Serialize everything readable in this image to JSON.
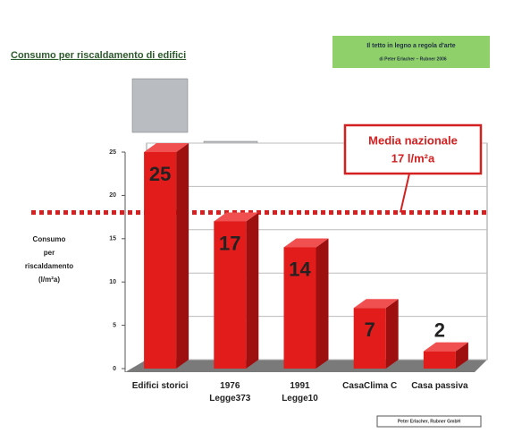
{
  "chart_data": {
    "type": "bar3d",
    "title": "Consumo per riscaldamento di edifici",
    "note": [
      "Il tetto in legno a regola d'arte",
      "di Peter Erlacher – Rubner 2006"
    ],
    "ylabel": [
      "Consumo",
      "per",
      "riscaldamento",
      "(l/m²a)"
    ],
    "categories": [
      "Edifici storici",
      "1976 Legge373",
      "1991 Legge10",
      "CasaClima C",
      "Casa passiva"
    ],
    "values": [
      25,
      17,
      14,
      7,
      2
    ],
    "color": "#e21b1b",
    "ylim": [
      0,
      25
    ],
    "yticks": [
      0,
      5,
      10,
      15,
      20,
      25
    ],
    "grid": true,
    "reference_line": {
      "value": 17,
      "label": [
        "Media nazionale",
        "17 l/m²a"
      ],
      "color": "#d42020"
    },
    "source": "Peter Erlacher, Rubner GmbH"
  }
}
